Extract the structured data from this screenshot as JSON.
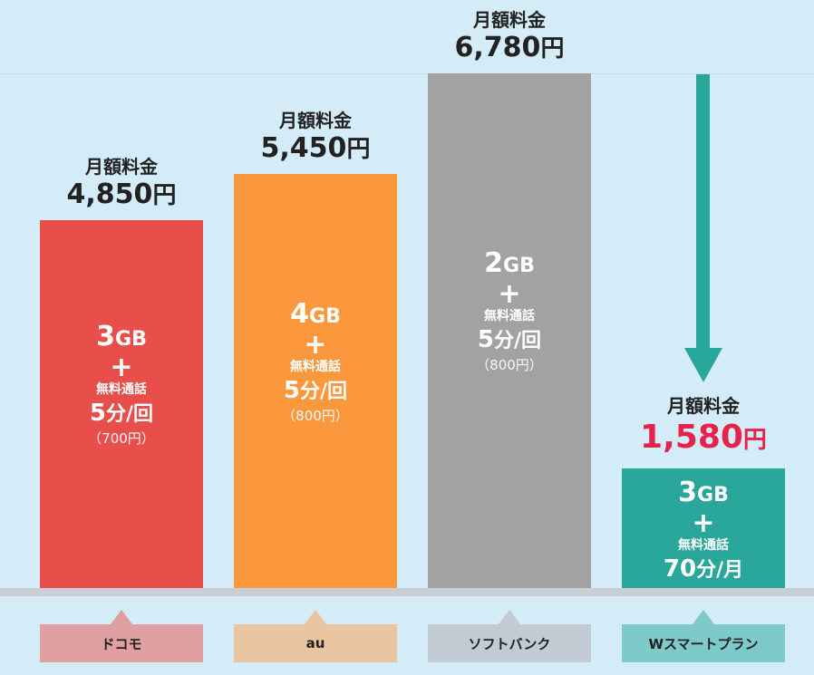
{
  "chart_data": {
    "type": "bar",
    "categories": [
      "ドコモ",
      "au",
      "ソフトバンク",
      "Wスマートプラン"
    ],
    "price_label": "月額料金",
    "yen_unit": "円",
    "plus_sign": "+",
    "calls_label": "無料通話",
    "values": [
      4850,
      5450,
      6780,
      1580
    ],
    "value_text": [
      "4,850",
      "5,450",
      "6,780",
      "1,580"
    ],
    "data_gb": [
      "3",
      "4",
      "2",
      "3"
    ],
    "gb_unit": "GB",
    "call_minutes": [
      "5",
      "5",
      "5",
      "70"
    ],
    "call_unit": [
      "分/回",
      "分/回",
      "分/回",
      "分/月"
    ],
    "call_price_note": [
      "（700円）",
      "（800円）",
      "（800円）",
      ""
    ],
    "ylim": [
      0,
      6780
    ],
    "colors": {
      "bars": [
        "#e84f4b",
        "#fb983d",
        "#a2a2a2",
        "#28a79a"
      ],
      "labels": [
        "#e09fa1",
        "#e8c4a0",
        "#c2cbd4",
        "#7ecaca"
      ],
      "highlight_price": "#e8234a",
      "arrow": "#28a79a",
      "background": "#d4ebf8",
      "baseline": "#c9cfd2"
    },
    "highlight_index": 3
  }
}
